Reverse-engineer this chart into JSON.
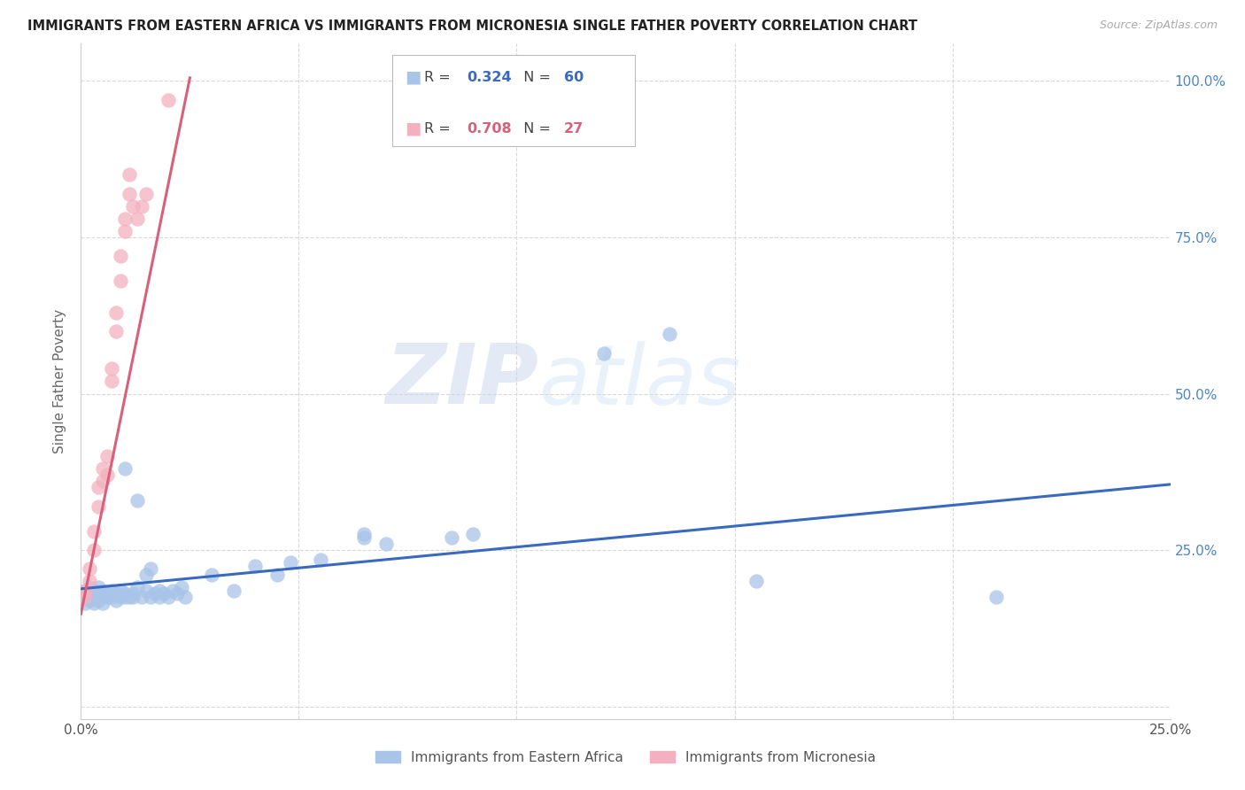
{
  "title": "IMMIGRANTS FROM EASTERN AFRICA VS IMMIGRANTS FROM MICRONESIA SINGLE FATHER POVERTY CORRELATION CHART",
  "source": "Source: ZipAtlas.com",
  "ylabel": "Single Father Poverty",
  "yticks": [
    0.0,
    0.25,
    0.5,
    0.75,
    1.0
  ],
  "ytick_labels": [
    "",
    "25.0%",
    "50.0%",
    "75.0%",
    "100.0%"
  ],
  "xlim": [
    0.0,
    0.25
  ],
  "ylim": [
    -0.02,
    1.06
  ],
  "blue_R": 0.324,
  "blue_N": 60,
  "pink_R": 0.708,
  "pink_N": 27,
  "blue_color": "#a8c4e8",
  "pink_color": "#f4b0c0",
  "blue_line_color": "#3a6abf",
  "pink_line_color": "#d9607a",
  "watermark_zip": "ZIP",
  "watermark_atlas": "atlas",
  "blue_scatter": [
    [
      0.001,
      0.175
    ],
    [
      0.001,
      0.185
    ],
    [
      0.001,
      0.165
    ],
    [
      0.002,
      0.18
    ],
    [
      0.002,
      0.17
    ],
    [
      0.002,
      0.19
    ],
    [
      0.003,
      0.175
    ],
    [
      0.003,
      0.165
    ],
    [
      0.003,
      0.185
    ],
    [
      0.004,
      0.18
    ],
    [
      0.004,
      0.17
    ],
    [
      0.004,
      0.19
    ],
    [
      0.005,
      0.175
    ],
    [
      0.005,
      0.185
    ],
    [
      0.005,
      0.165
    ],
    [
      0.006,
      0.18
    ],
    [
      0.006,
      0.175
    ],
    [
      0.007,
      0.185
    ],
    [
      0.007,
      0.175
    ],
    [
      0.008,
      0.17
    ],
    [
      0.008,
      0.18
    ],
    [
      0.009,
      0.175
    ],
    [
      0.009,
      0.185
    ],
    [
      0.01,
      0.18
    ],
    [
      0.01,
      0.175
    ],
    [
      0.01,
      0.38
    ],
    [
      0.011,
      0.175
    ],
    [
      0.012,
      0.18
    ],
    [
      0.012,
      0.175
    ],
    [
      0.013,
      0.33
    ],
    [
      0.013,
      0.19
    ],
    [
      0.014,
      0.175
    ],
    [
      0.015,
      0.185
    ],
    [
      0.015,
      0.21
    ],
    [
      0.016,
      0.22
    ],
    [
      0.016,
      0.175
    ],
    [
      0.017,
      0.18
    ],
    [
      0.018,
      0.175
    ],
    [
      0.018,
      0.185
    ],
    [
      0.019,
      0.18
    ],
    [
      0.02,
      0.175
    ],
    [
      0.021,
      0.185
    ],
    [
      0.022,
      0.18
    ],
    [
      0.023,
      0.19
    ],
    [
      0.024,
      0.175
    ],
    [
      0.03,
      0.21
    ],
    [
      0.035,
      0.185
    ],
    [
      0.04,
      0.225
    ],
    [
      0.045,
      0.21
    ],
    [
      0.048,
      0.23
    ],
    [
      0.055,
      0.235
    ],
    [
      0.065,
      0.27
    ],
    [
      0.065,
      0.275
    ],
    [
      0.07,
      0.26
    ],
    [
      0.085,
      0.27
    ],
    [
      0.09,
      0.275
    ],
    [
      0.12,
      0.565
    ],
    [
      0.135,
      0.595
    ],
    [
      0.155,
      0.2
    ],
    [
      0.21,
      0.175
    ]
  ],
  "pink_scatter": [
    [
      0.001,
      0.175
    ],
    [
      0.001,
      0.185
    ],
    [
      0.002,
      0.22
    ],
    [
      0.002,
      0.2
    ],
    [
      0.003,
      0.28
    ],
    [
      0.003,
      0.25
    ],
    [
      0.004,
      0.35
    ],
    [
      0.004,
      0.32
    ],
    [
      0.005,
      0.38
    ],
    [
      0.005,
      0.36
    ],
    [
      0.006,
      0.4
    ],
    [
      0.006,
      0.37
    ],
    [
      0.007,
      0.54
    ],
    [
      0.007,
      0.52
    ],
    [
      0.008,
      0.63
    ],
    [
      0.008,
      0.6
    ],
    [
      0.009,
      0.68
    ],
    [
      0.009,
      0.72
    ],
    [
      0.01,
      0.76
    ],
    [
      0.01,
      0.78
    ],
    [
      0.011,
      0.82
    ],
    [
      0.011,
      0.85
    ],
    [
      0.012,
      0.8
    ],
    [
      0.013,
      0.78
    ],
    [
      0.014,
      0.8
    ],
    [
      0.015,
      0.82
    ],
    [
      0.02,
      0.97
    ]
  ],
  "blue_trend_x": [
    0.0,
    0.25
  ],
  "blue_trend_y": [
    0.188,
    0.355
  ],
  "pink_trend_x": [
    0.0,
    0.025
  ],
  "pink_trend_y": [
    0.148,
    1.005
  ],
  "xtick_positions": [
    0.05,
    0.1,
    0.15,
    0.2
  ],
  "ytick_grid": [
    0.0,
    0.25,
    0.5,
    0.75,
    1.0
  ]
}
